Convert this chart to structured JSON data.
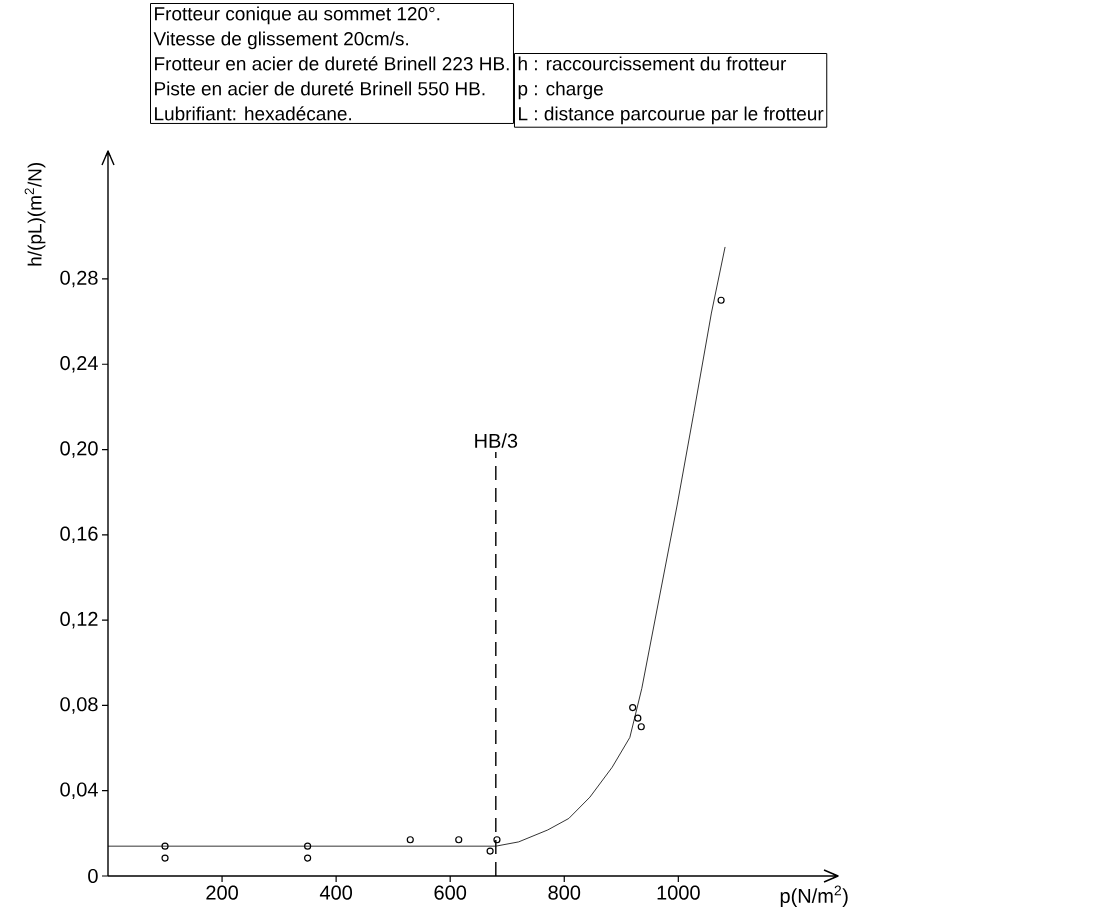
{
  "chart_data": {
    "type": "scatter",
    "xlabel": "p(N/m$^{2}$)",
    "ylabel": "h/(pL)(m$^{2}$/N)",
    "xlim": [
      0,
      1280
    ],
    "ylim": [
      0,
      0.34
    ],
    "xticks": [
      200,
      400,
      600,
      800,
      1000
    ],
    "yticks": [
      {
        "value": 0,
        "label": "0"
      },
      {
        "value": 0.04,
        "label": "0,04"
      },
      {
        "value": 0.08,
        "label": "0,08"
      },
      {
        "value": 0.12,
        "label": "0,12"
      },
      {
        "value": 0.16,
        "label": "0,16"
      },
      {
        "value": 0.2,
        "label": "0,20"
      },
      {
        "value": 0.24,
        "label": "0,24"
      },
      {
        "value": 0.28,
        "label": "0,28"
      }
    ],
    "marker": "none",
    "series": [
      {
        "marker": "circle",
        "color": "#000000",
        "x": [
          100,
          100,
          350,
          350,
          530,
          615,
          670,
          682,
          920,
          929,
          935,
          1075
        ],
        "values": [
          0.014,
          0.0084,
          0.014,
          0.0084,
          0.017,
          0.017,
          0.0117,
          0.017,
          0.079,
          0.074,
          0.07,
          0.27
        ]
      },
      {
        "type": "line",
        "color": "#000000",
        "x": [
          0,
          680,
          720,
          771,
          808,
          845,
          884,
          915,
          936,
          967,
          998,
          1027,
          1058,
          1082
        ],
        "values": [
          0.014,
          0.014,
          0.016,
          0.0216,
          0.027,
          0.037,
          0.051,
          0.065,
          0.088,
          0.131,
          0.174,
          0.217,
          0.264,
          0.295
        ]
      }
    ],
    "ref_lines": [
      {
        "axis": "x",
        "value": 680,
        "label": "HB/3",
        "line_style": "dashed"
      }
    ],
    "annotations": [
      "Frotteur conique au sommet 120°.",
      "Vitesse de glissement 20cm/s.",
      "Frotteur en acier de dureté Brinell 223 HB.",
      "Piste en acier de dureté Brinell 550 HB.",
      "Lubrifiant: hexadécane.",
      "h : raccourcissement du frotteur",
      "p : charge",
      "L : distance parcourue par le frotteur"
    ]
  }
}
